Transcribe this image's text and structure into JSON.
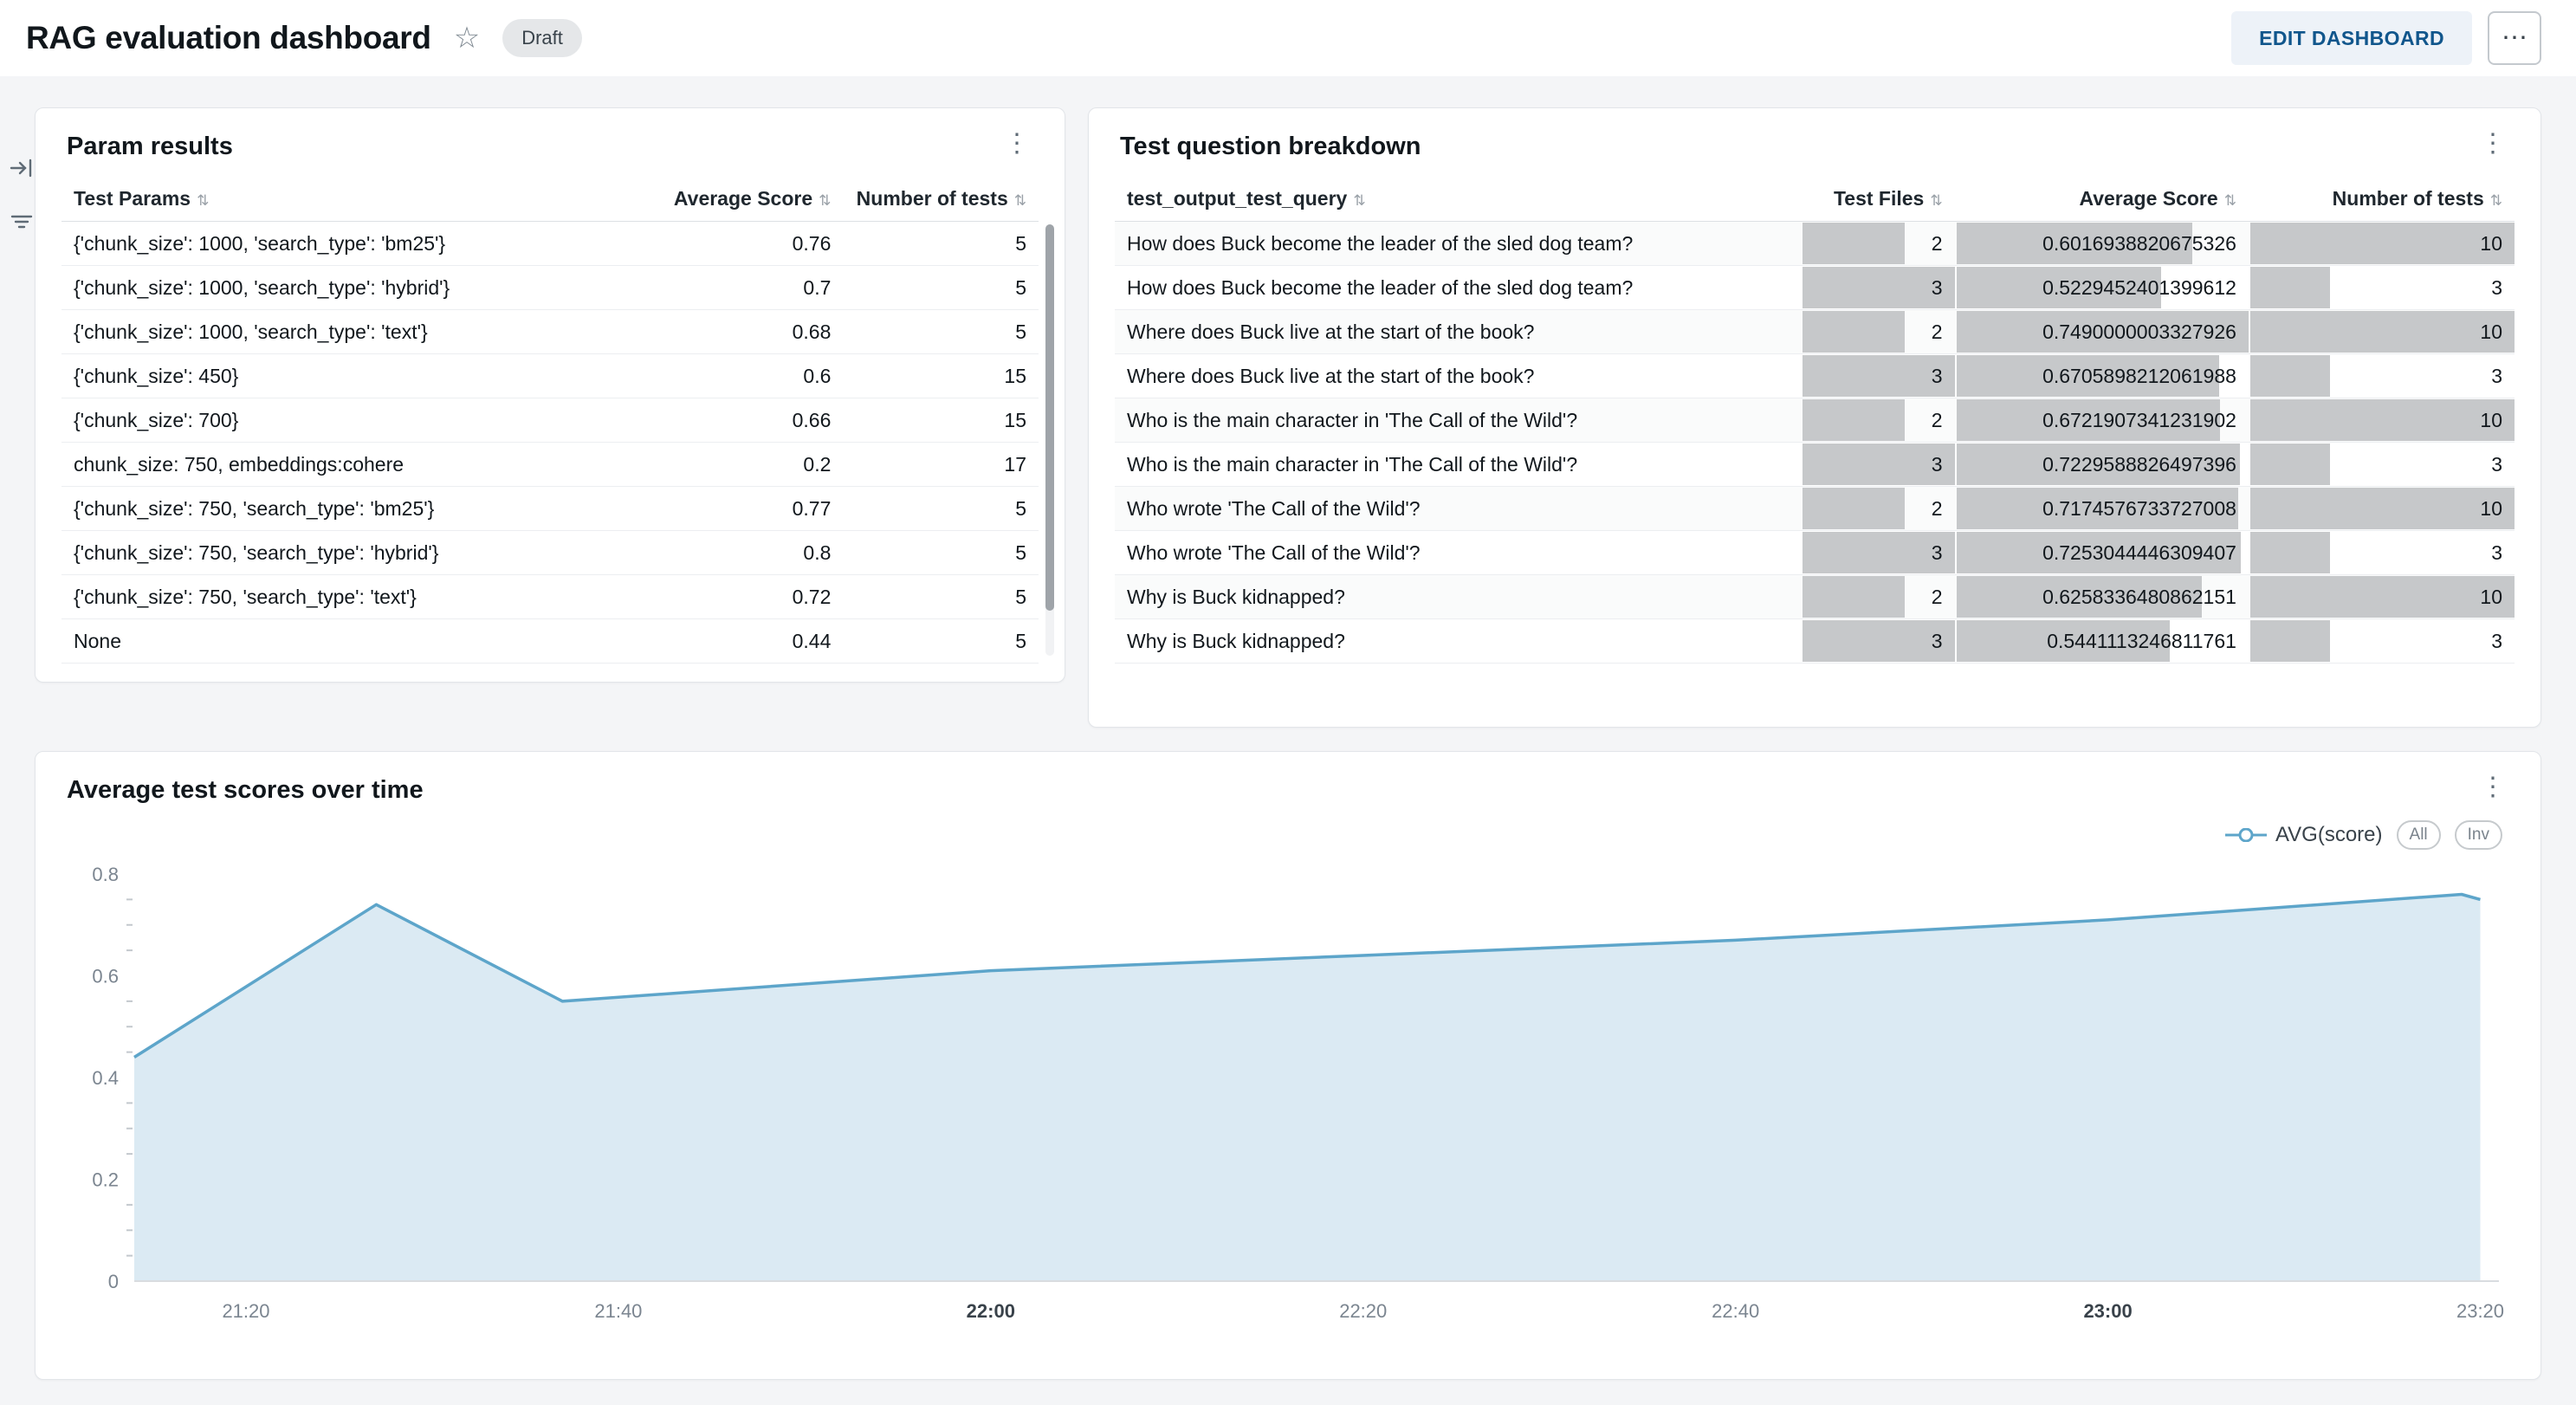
{
  "header": {
    "title": "RAG evaluation dashboard",
    "status_badge": "Draft",
    "edit_button": "EDIT DASHBOARD"
  },
  "icons": {
    "star": "☆",
    "kebab": "⋮",
    "more": "⋯",
    "sort": "⇅"
  },
  "param_results": {
    "title": "Param results",
    "columns": [
      "Test Params",
      "Average Score",
      "Number of tests"
    ],
    "rows": [
      [
        "{'chunk_size': 1000, 'search_type': 'bm25'}",
        "0.76",
        "5"
      ],
      [
        "{'chunk_size': 1000, 'search_type': 'hybrid'}",
        "0.7",
        "5"
      ],
      [
        "{'chunk_size': 1000, 'search_type': 'text'}",
        "0.68",
        "5"
      ],
      [
        "{'chunk_size': 450}",
        "0.6",
        "15"
      ],
      [
        "{'chunk_size': 700}",
        "0.66",
        "15"
      ],
      [
        "chunk_size: 750, embeddings:cohere",
        "0.2",
        "17"
      ],
      [
        "{'chunk_size': 750, 'search_type': 'bm25'}",
        "0.77",
        "5"
      ],
      [
        "{'chunk_size': 750, 'search_type': 'hybrid'}",
        "0.8",
        "5"
      ],
      [
        "{'chunk_size': 750, 'search_type': 'text'}",
        "0.72",
        "5"
      ],
      [
        "None",
        "0.44",
        "5"
      ]
    ]
  },
  "question_breakdown": {
    "title": "Test question breakdown",
    "columns": [
      "test_output_test_query",
      "Test Files",
      "Average Score",
      "Number of tests"
    ],
    "rows": [
      {
        "query": "How does Buck become the leader of the sled dog team?",
        "files": 2,
        "score": "0.6016938820675326",
        "tests": 10
      },
      {
        "query": "How does Buck become the leader of the sled dog team?",
        "files": 3,
        "score": "0.5229452401399612",
        "tests": 3
      },
      {
        "query": "Where does Buck live at the start of the book?",
        "files": 2,
        "score": "0.7490000003327926",
        "tests": 10
      },
      {
        "query": "Where does Buck live at the start of the book?",
        "files": 3,
        "score": "0.6705898212061988",
        "tests": 3
      },
      {
        "query": "Who is the main character in 'The Call of the Wild'?",
        "files": 2,
        "score": "0.6721907341231902",
        "tests": 10
      },
      {
        "query": "Who is the main character in 'The Call of the Wild'?",
        "files": 3,
        "score": "0.7229588826497396",
        "tests": 3
      },
      {
        "query": "Who wrote 'The Call of the Wild'?",
        "files": 2,
        "score": "0.7174576733727008",
        "tests": 10
      },
      {
        "query": "Who wrote 'The Call of the Wild'?",
        "files": 3,
        "score": "0.7253044446309407",
        "tests": 3
      },
      {
        "query": "Why is Buck kidnapped?",
        "files": 2,
        "score": "0.6258336480862151",
        "tests": 10
      },
      {
        "query": "Why is Buck kidnapped?",
        "files": 3,
        "score": "0.5441113246811761",
        "tests": 3
      }
    ],
    "bar_color": "#c6c8ca"
  },
  "chart_data": {
    "type": "area",
    "title": "Average test scores over time",
    "xlabel": "",
    "ylabel": "",
    "ylim": [
      0,
      0.8
    ],
    "y_ticks": [
      "0",
      "0.2",
      "0.4",
      "0.6",
      "0.8"
    ],
    "y_minor_step": 0.05,
    "xlim_minutes": [
      14,
      141
    ],
    "x_ticks": [
      {
        "label": "21:20",
        "minute": 20,
        "bold": false
      },
      {
        "label": "21:40",
        "minute": 40,
        "bold": false
      },
      {
        "label": "22:00",
        "minute": 60,
        "bold": true
      },
      {
        "label": "22:20",
        "minute": 80,
        "bold": false
      },
      {
        "label": "22:40",
        "minute": 100,
        "bold": false
      },
      {
        "label": "23:00",
        "minute": 120,
        "bold": true
      },
      {
        "label": "23:20",
        "minute": 140,
        "bold": false
      }
    ],
    "series": [
      {
        "name": "AVG(score)",
        "x_minutes_after_21_00": [
          14,
          27,
          37,
          60,
          80,
          100,
          120,
          139,
          140
        ],
        "values": [
          0.44,
          0.74,
          0.55,
          0.61,
          0.64,
          0.67,
          0.71,
          0.76,
          0.75
        ]
      }
    ],
    "legend_buttons": [
      "All",
      "Inv"
    ],
    "grid": false,
    "legend_position": "top-right",
    "line_color": "#5da5ca",
    "fill_color": "#dbeaf3",
    "axis_color": "#d9dce0"
  }
}
